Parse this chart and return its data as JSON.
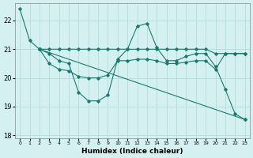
{
  "xlabel": "Humidex (Indice chaleur)",
  "bg_color": "#d4f0f0",
  "grid_color": "#b8e0e0",
  "line_color": "#1a7a6e",
  "xlim": [
    -0.5,
    23.5
  ],
  "ylim": [
    17.9,
    22.6
  ],
  "yticks": [
    18,
    19,
    20,
    21,
    22
  ],
  "xticks": [
    0,
    1,
    2,
    3,
    4,
    5,
    6,
    7,
    8,
    9,
    10,
    11,
    12,
    13,
    14,
    15,
    16,
    17,
    18,
    19,
    20,
    21,
    22,
    23
  ],
  "series": [
    {
      "x": [
        0,
        1,
        2,
        3,
        4,
        5,
        6,
        7,
        8,
        9,
        10,
        11,
        12,
        13,
        14,
        15,
        16,
        17,
        18,
        19,
        20,
        21,
        22,
        23
      ],
      "y": [
        22.4,
        21.3,
        21.0,
        20.85,
        20.6,
        20.5,
        19.5,
        19.2,
        19.2,
        19.4,
        20.65,
        21.0,
        21.8,
        21.9,
        21.05,
        20.6,
        20.6,
        20.75,
        20.85,
        20.85,
        20.4,
        19.6,
        18.75,
        18.55
      ]
    },
    {
      "x": [
        2,
        3,
        4,
        5,
        6,
        7,
        8,
        9,
        10,
        11,
        12,
        13,
        14,
        15,
        16,
        17,
        18,
        19,
        20,
        21,
        22,
        23
      ],
      "y": [
        21.0,
        21.0,
        21.0,
        21.0,
        21.0,
        21.0,
        21.0,
        21.0,
        21.0,
        21.0,
        21.0,
        21.0,
        21.0,
        21.0,
        21.0,
        21.0,
        21.0,
        21.0,
        20.85,
        20.85,
        20.85,
        20.85
      ]
    },
    {
      "x": [
        2,
        23
      ],
      "y": [
        21.0,
        18.55
      ]
    },
    {
      "x": [
        2,
        3,
        4,
        5,
        6,
        7,
        8,
        9,
        10,
        11,
        12,
        13,
        14,
        15,
        16,
        17,
        18,
        19,
        20,
        21,
        22,
        23
      ],
      "y": [
        21.0,
        20.5,
        20.3,
        20.25,
        20.05,
        20.0,
        20.0,
        20.1,
        20.6,
        20.6,
        20.65,
        20.65,
        20.6,
        20.5,
        20.5,
        20.55,
        20.6,
        20.6,
        20.3,
        20.85,
        20.85,
        20.85
      ]
    }
  ]
}
